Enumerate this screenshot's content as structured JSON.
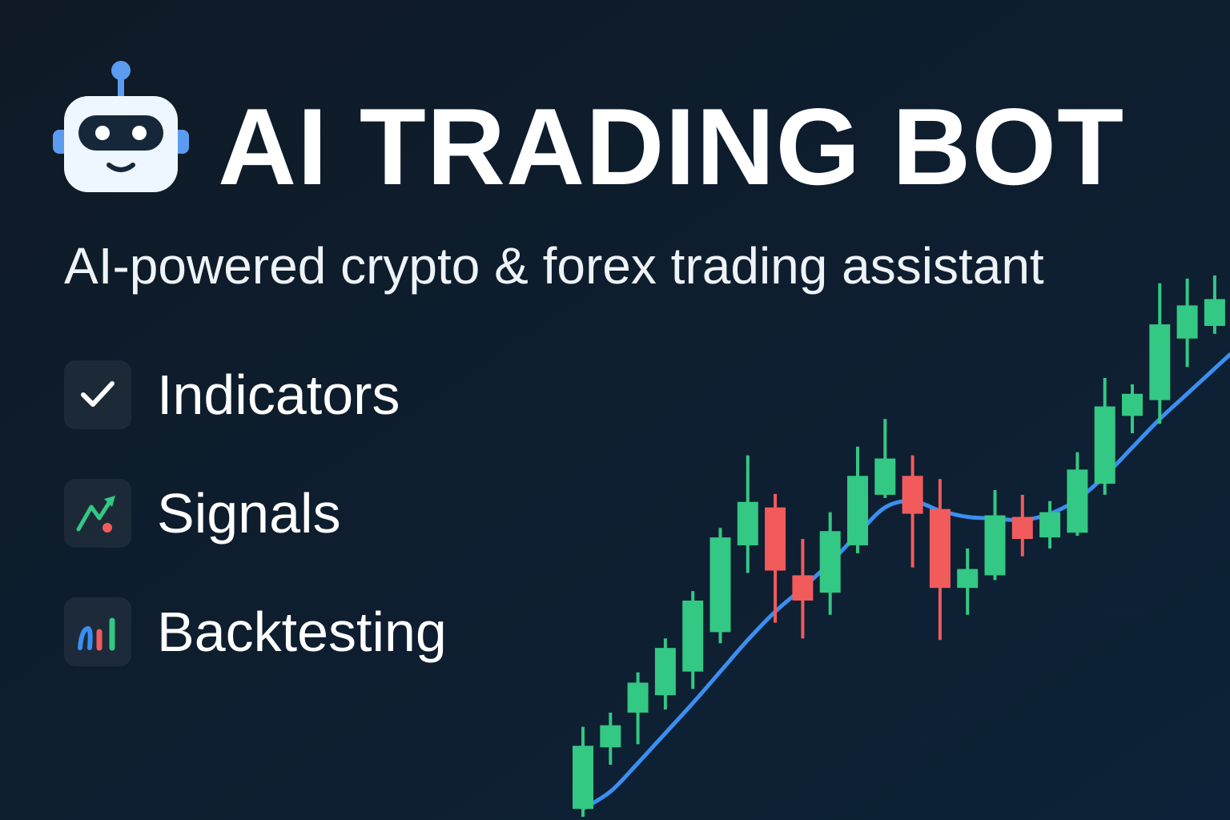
{
  "colors": {
    "background_top": "#0f1a26",
    "background_bottom": "#0d2238",
    "bull": "#33c883",
    "bear": "#f25b5b",
    "ma_line": "#3b8ff0",
    "logo_accent": "#5b9cf0",
    "logo_face": "#eef6ff",
    "logo_screen": "#16273a"
  },
  "header": {
    "title": "AI TRADING BOT",
    "subtitle": "AI-powered crypto & forex trading assistant",
    "logo_icon": "robot-icon"
  },
  "features": [
    {
      "label": "Indicators",
      "icon": "check-icon"
    },
    {
      "label": "Signals",
      "icon": "signal-trend-icon"
    },
    {
      "label": "Backtesting",
      "icon": "bar-chart-icon"
    }
  ],
  "chart_data": {
    "type": "candlestick",
    "title": "",
    "xlabel": "",
    "ylabel": "",
    "grid": false,
    "candles": [
      {
        "open": 0,
        "close": 80,
        "high": 104,
        "low": -10
      },
      {
        "open": 78,
        "close": 106,
        "high": 122,
        "low": 56
      },
      {
        "open": 122,
        "close": 160,
        "high": 173,
        "low": 82
      },
      {
        "open": 144,
        "close": 204,
        "high": 216,
        "low": 126
      },
      {
        "open": 174,
        "close": 264,
        "high": 276,
        "low": 152
      },
      {
        "open": 224,
        "close": 344,
        "high": 356,
        "low": 210
      },
      {
        "open": 334,
        "close": 389,
        "high": 448,
        "low": 299
      },
      {
        "open": 382,
        "close": 302,
        "high": 399,
        "low": 236
      },
      {
        "open": 296,
        "close": 264,
        "high": 342,
        "low": 216
      },
      {
        "open": 274,
        "close": 352,
        "high": 376,
        "low": 246
      },
      {
        "open": 334,
        "close": 422,
        "high": 459,
        "low": 324
      },
      {
        "open": 398,
        "close": 444,
        "high": 494,
        "low": 394
      },
      {
        "open": 422,
        "close": 374,
        "high": 448,
        "low": 306
      },
      {
        "open": 380,
        "close": 280,
        "high": 418,
        "low": 214
      },
      {
        "open": 280,
        "close": 304,
        "high": 330,
        "low": 246
      },
      {
        "open": 296,
        "close": 372,
        "high": 404,
        "low": 290
      },
      {
        "open": 370,
        "close": 342,
        "high": 398,
        "low": 320
      },
      {
        "open": 344,
        "close": 376,
        "high": 390,
        "low": 330
      },
      {
        "open": 350,
        "close": 430,
        "high": 452,
        "low": 346
      },
      {
        "open": 412,
        "close": 510,
        "high": 546,
        "low": 398
      },
      {
        "open": 498,
        "close": 526,
        "high": 538,
        "low": 476
      },
      {
        "open": 518,
        "close": 614,
        "high": 666,
        "low": 488
      },
      {
        "open": 596,
        "close": 638,
        "high": 672,
        "low": 560
      },
      {
        "open": 612,
        "close": 646,
        "high": 676,
        "low": 602
      }
    ],
    "moving_average": [
      0,
      22,
      58,
      96,
      134,
      174,
      214,
      250,
      280,
      312,
      348,
      382,
      390,
      378,
      370,
      368,
      366,
      374,
      392,
      422,
      458,
      494,
      526,
      558
    ],
    "ylim": [
      -10,
      680
    ]
  }
}
